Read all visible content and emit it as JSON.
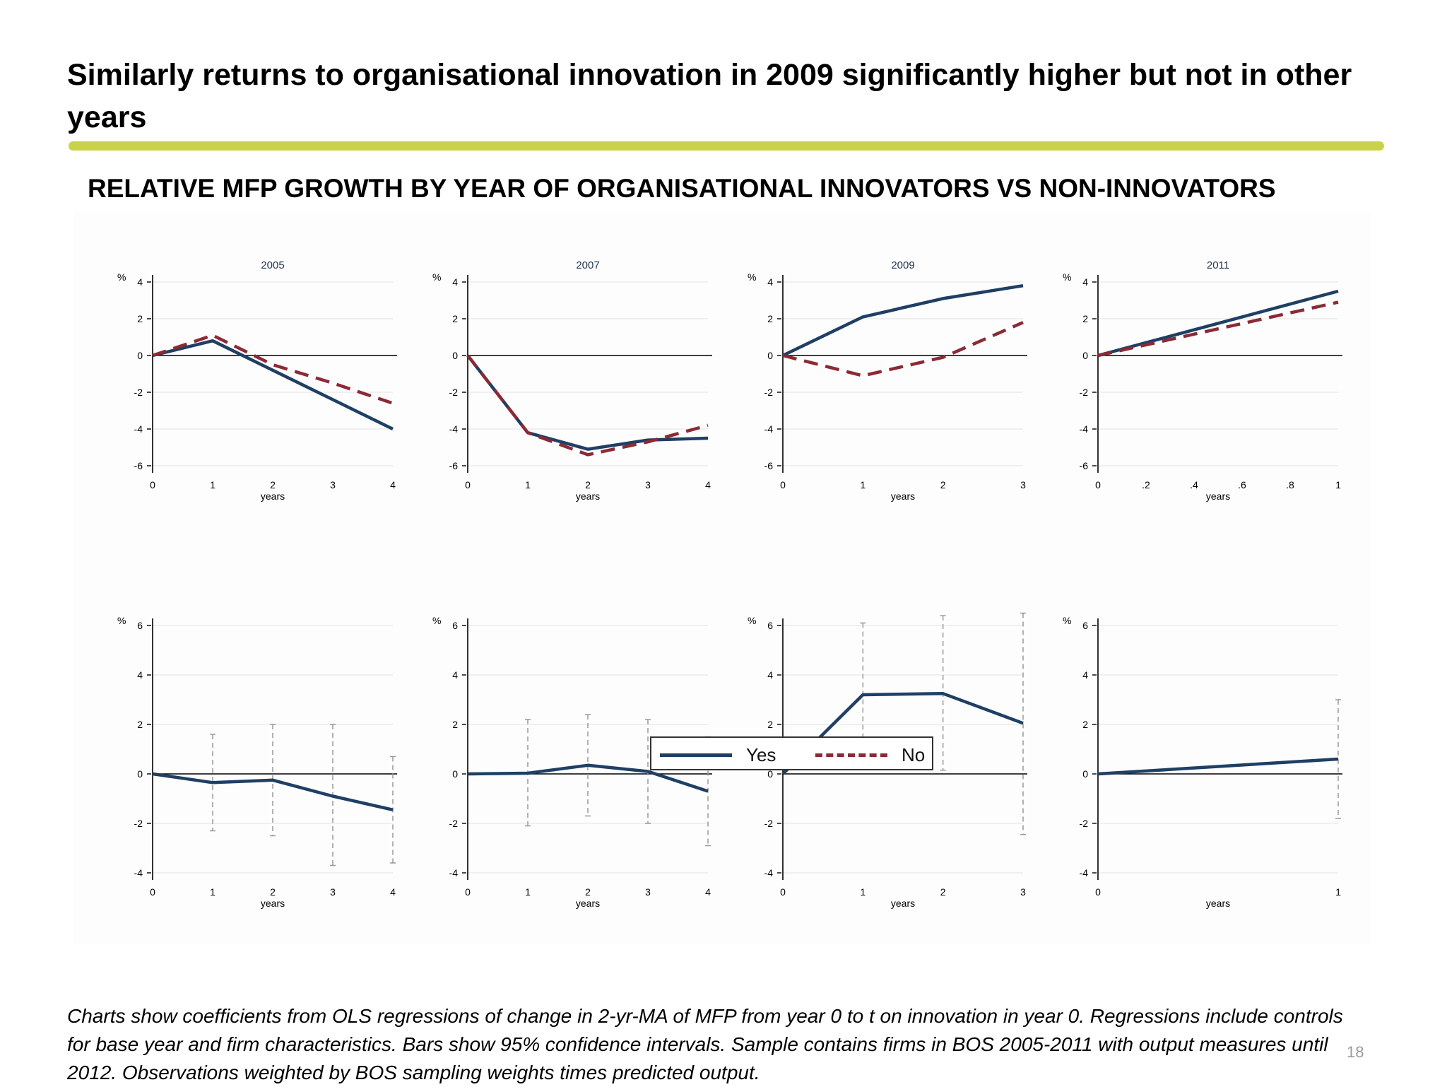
{
  "page": {
    "title": "Similarly returns to organisational innovation in 2009 significantly higher but not in other years",
    "subtitle": "RELATIVE MFP GROWTH BY YEAR OF ORGANISATIONAL INNOVATORS VS NON-INNOVATORS",
    "footnote": "Charts show coefficients from OLS regressions of change in 2-yr-MA of MFP from year 0 to t on innovation in year 0. Regressions include controls for base year and firm characteristics. Bars show 95% confidence intervals. Sample contains firms in BOS 2005-2011 with output measures until 2012. Observations weighted by BOS sampling weights times predicted output.",
    "page_number": "18"
  },
  "colors": {
    "yes": "#1f3f64",
    "no": "#8b2a35",
    "ci": "#9a9a9a",
    "accent": "#c9d24a",
    "grid": "#ececec"
  },
  "legend": [
    {
      "label": "Yes",
      "color": "#1f3f64",
      "style": "solid"
    },
    {
      "label": "No",
      "color": "#8b2a35",
      "style": "dashed"
    }
  ],
  "chart_data": [
    {
      "type": "line",
      "title": "2005",
      "xlabel": "years",
      "ylabel": "%",
      "x": [
        0,
        1,
        2,
        3,
        4
      ],
      "xticks": [
        "0",
        "1",
        "2",
        "3",
        "4"
      ],
      "ylim": [
        -6,
        4
      ],
      "yticks": [
        4,
        2,
        0,
        -2,
        -4,
        -6
      ],
      "grid": true,
      "series": [
        {
          "name": "Yes",
          "values": [
            0,
            0.8,
            -0.8,
            -2.4,
            -4.0
          ]
        },
        {
          "name": "No",
          "values": [
            0,
            1.1,
            -0.5,
            -1.5,
            -2.6
          ]
        }
      ]
    },
    {
      "type": "line",
      "title": "2007",
      "xlabel": "years",
      "ylabel": "%",
      "x": [
        0,
        1,
        2,
        3,
        4
      ],
      "xticks": [
        "0",
        "1",
        "2",
        "3",
        "4"
      ],
      "ylim": [
        -6,
        4
      ],
      "yticks": [
        4,
        2,
        0,
        -2,
        -4,
        -6
      ],
      "grid": true,
      "series": [
        {
          "name": "Yes",
          "values": [
            0,
            -4.2,
            -5.1,
            -4.6,
            -4.5
          ]
        },
        {
          "name": "No",
          "values": [
            0,
            -4.2,
            -5.4,
            -4.7,
            -3.8
          ]
        }
      ]
    },
    {
      "type": "line",
      "title": "2009",
      "xlabel": "years",
      "ylabel": "%",
      "x": [
        0,
        1,
        2,
        3
      ],
      "xticks": [
        "0",
        "1",
        "2",
        "3"
      ],
      "ylim": [
        -6,
        4
      ],
      "yticks": [
        4,
        2,
        0,
        -2,
        -4,
        -6
      ],
      "grid": true,
      "series": [
        {
          "name": "Yes",
          "values": [
            0,
            2.1,
            3.1,
            3.8
          ]
        },
        {
          "name": "No",
          "values": [
            0,
            -1.1,
            -0.1,
            1.8
          ]
        }
      ]
    },
    {
      "type": "line",
      "title": "2011",
      "xlabel": "years",
      "ylabel": "%",
      "x": [
        0,
        1
      ],
      "xticks": [
        "0",
        ".2",
        ".4",
        ".6",
        ".8",
        "1"
      ],
      "ylim": [
        -6,
        4
      ],
      "yticks": [
        4,
        2,
        0,
        -2,
        -4,
        -6
      ],
      "grid": true,
      "series": [
        {
          "name": "Yes",
          "values": [
            0,
            3.5
          ]
        },
        {
          "name": "No",
          "values": [
            0,
            2.9
          ]
        }
      ]
    },
    {
      "type": "line",
      "title": "",
      "xlabel": "years",
      "ylabel": "%",
      "x": [
        0,
        1,
        2,
        3,
        4
      ],
      "xticks": [
        "0",
        "1",
        "2",
        "3",
        "4"
      ],
      "ylim": [
        -4,
        6
      ],
      "yticks": [
        6,
        4,
        2,
        0,
        -2,
        -4
      ],
      "grid": true,
      "series": [
        {
          "values": [
            0,
            -0.35,
            -0.25,
            -0.9,
            -1.45
          ]
        }
      ],
      "ci_low": [
        null,
        -2.3,
        -2.5,
        -3.7,
        -3.6
      ],
      "ci_high": [
        null,
        1.6,
        2.0,
        2.0,
        0.7
      ]
    },
    {
      "type": "line",
      "title": "",
      "xlabel": "years",
      "ylabel": "%",
      "x": [
        0,
        1,
        2,
        3,
        4
      ],
      "xticks": [
        "0",
        "1",
        "2",
        "3",
        "4"
      ],
      "ylim": [
        -4,
        6
      ],
      "yticks": [
        6,
        4,
        2,
        0,
        -2,
        -4
      ],
      "grid": true,
      "series": [
        {
          "values": [
            0,
            0.03,
            0.35,
            0.1,
            -0.7
          ]
        }
      ],
      "ci_low": [
        null,
        -2.1,
        -1.7,
        -2.0,
        -2.9
      ],
      "ci_high": [
        null,
        2.2,
        2.4,
        2.2,
        1.5
      ]
    },
    {
      "type": "line",
      "title": "",
      "xlabel": "years",
      "ylabel": "%",
      "x": [
        0,
        1,
        2,
        3
      ],
      "xticks": [
        "0",
        "1",
        "2",
        "3"
      ],
      "ylim": [
        -4,
        6
      ],
      "yticks": [
        6,
        4,
        2,
        0,
        -2,
        -4
      ],
      "grid": true,
      "series": [
        {
          "values": [
            0,
            3.2,
            3.25,
            2.05
          ]
        }
      ],
      "ci_low": [
        null,
        0.4,
        0.15,
        -2.45
      ],
      "ci_high": [
        null,
        6.1,
        6.4,
        6.5
      ]
    },
    {
      "type": "line",
      "title": "",
      "xlabel": "years",
      "ylabel": "%",
      "x": [
        0,
        1
      ],
      "xticks": [
        "0",
        "1"
      ],
      "ylim": [
        -4,
        6
      ],
      "yticks": [
        6,
        4,
        2,
        0,
        -2,
        -4
      ],
      "grid": true,
      "series": [
        {
          "values": [
            0,
            0.6
          ]
        }
      ],
      "ci_low": [
        null,
        -1.8
      ],
      "ci_high": [
        null,
        3.0
      ]
    }
  ]
}
